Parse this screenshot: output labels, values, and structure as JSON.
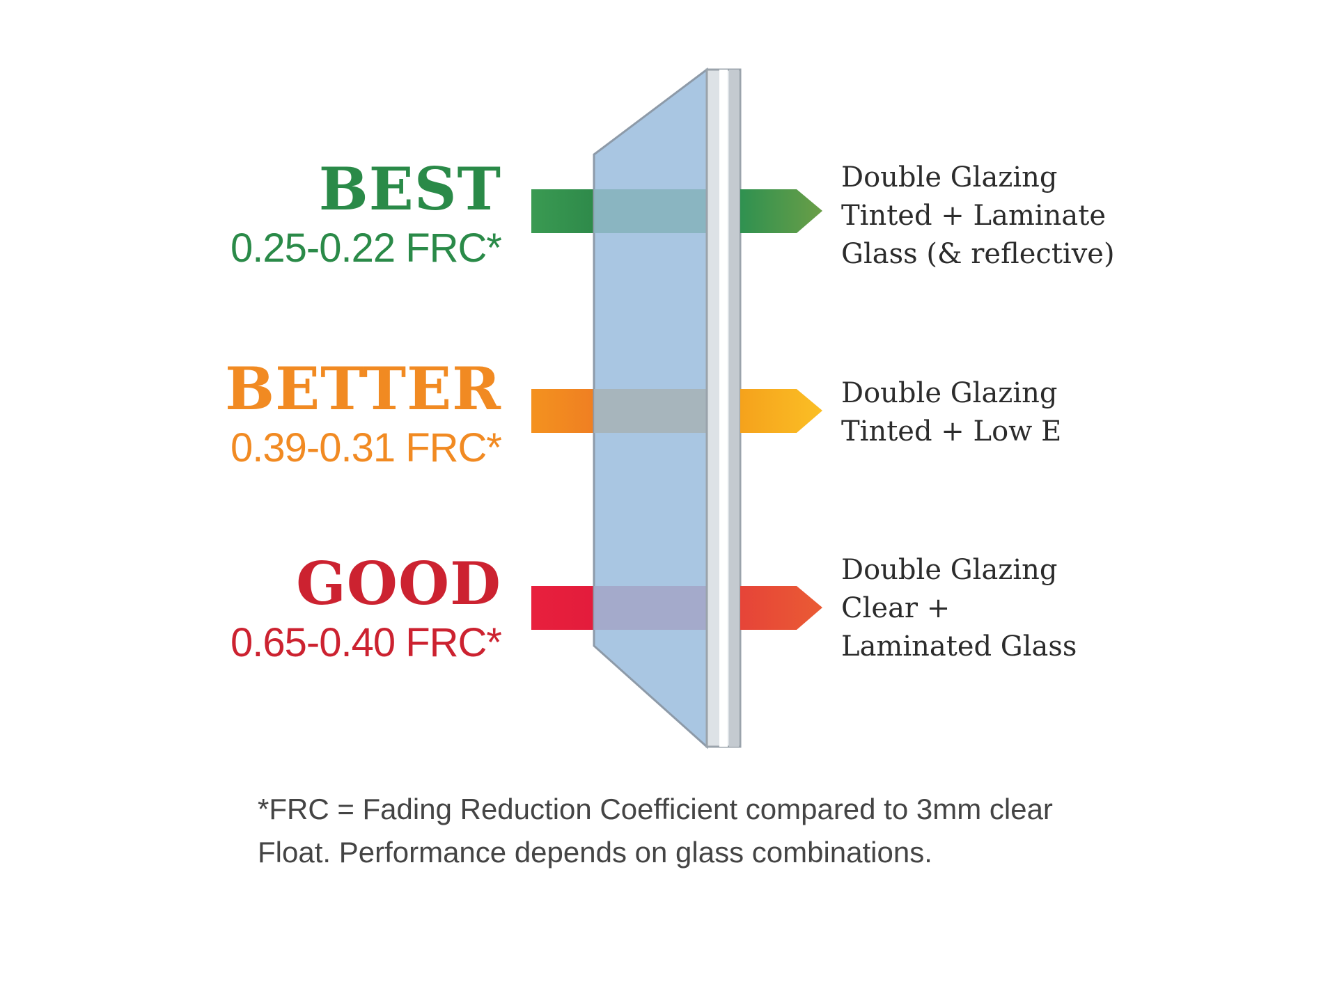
{
  "colors": {
    "best": "#2a8a48",
    "better": "#f18a22",
    "good": "#cc2230",
    "glass_front": "#a9c6e2",
    "glass_edge": "#c8cdd2"
  },
  "tiers": [
    {
      "key": "best",
      "name": "BEST",
      "frc": "0.25-0.22 FRC*",
      "description": [
        "Double Glazing",
        "Tinted + Laminate",
        "Glass (& reflective)"
      ]
    },
    {
      "key": "better",
      "name": "BETTER",
      "frc": "0.39-0.31 FRC*",
      "description": [
        "Double Glazing",
        "Tinted + Low E"
      ]
    },
    {
      "key": "good",
      "name": "GOOD",
      "frc": "0.65-0.40 FRC*",
      "description": [
        "Double Glazing",
        "Clear +",
        "Laminated Glass"
      ]
    }
  ],
  "footnote": "*FRC = Fading Reduction Coefficient compared to 3mm clear Float. Performance depends on glass combinations."
}
